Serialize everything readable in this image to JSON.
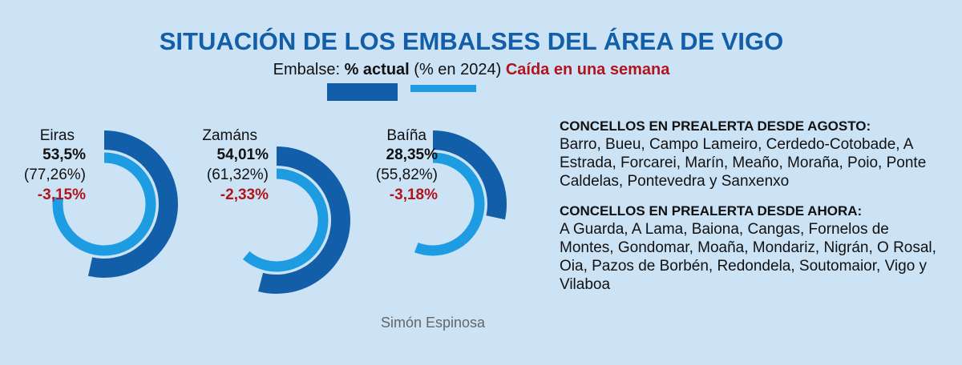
{
  "chart_data": {
    "type": "radial-bar",
    "title": "SITUACIÓN DE LOS EMBALSES DEL ÁREA DE VIGO",
    "legend_title": "Embalse:",
    "categories": [
      "Eiras",
      "Zamáns",
      "Baíña"
    ],
    "ylim": [
      0,
      100
    ],
    "series": [
      {
        "name": "% actual",
        "color": "#135ea8",
        "values": [
          53.5,
          54.01,
          28.35
        ],
        "value_labels": [
          "53,5%",
          "54,01%",
          "28,35%"
        ]
      },
      {
        "name": "(% en 2024)",
        "color": "#1e9ce2",
        "values": [
          77.26,
          61.32,
          55.82
        ],
        "value_labels": [
          "(77,26%)",
          "(61,32%)",
          "(55,82%)"
        ]
      },
      {
        "name": "Caída en una semana",
        "color": "#b3141c",
        "values": [
          -3.15,
          -2.33,
          -3.18
        ],
        "value_labels": [
          "-3,15%",
          "-2,33%",
          "-3,18%"
        ]
      }
    ],
    "credit": "Simón Espinosa"
  },
  "notes": [
    {
      "heading": "CONCELLOS EN PREALERTA DESDE AGOSTO:",
      "text": "Barro, Bueu, Campo Lameiro, Cerdedo-Cotobade, A Estrada, Forcarei, Marín, Meaño, Moraña, Poio, Ponte Caldelas, Pontevedra y Sanxenxo"
    },
    {
      "heading": "CONCELLOS EN PREALERTA DESDE AHORA:",
      "text": "A Guarda, A Lama, Baiona, Cangas, Fornelos de Montes, Gondomar, Moaña, Mondariz, Nigrán, O Rosal, Oia, Pazos de Borbén, Redondela, Soutomaior, Vigo y Vilaboa"
    }
  ]
}
